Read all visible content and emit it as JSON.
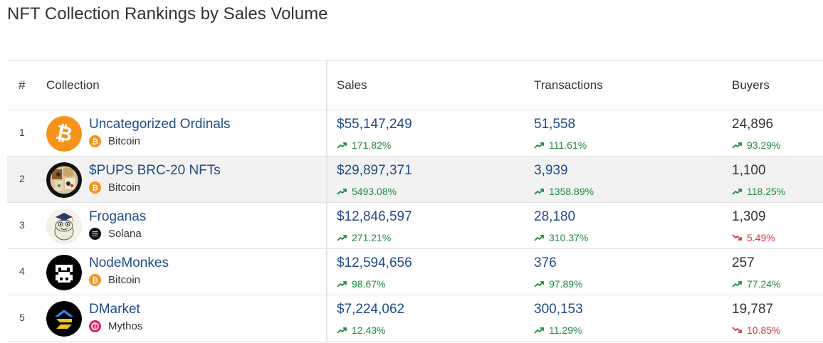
{
  "title": "NFT Collection Rankings by Sales Volume",
  "columns": {
    "rank": "#",
    "collection": "Collection",
    "sales": "Sales",
    "transactions": "Transactions",
    "buyers": "Buyers"
  },
  "colors": {
    "link": "#1f4c8a",
    "up": "#1e8a3e",
    "down": "#d8343e",
    "bitcoin": "#f7931a"
  },
  "rows": [
    {
      "rank": "1",
      "name": "Uncategorized Ordinals",
      "chain": "Bitcoin",
      "avatar_icon": "bitcoin-logo-icon",
      "sales": "$55,147,249",
      "sales_change": "171.82%",
      "transactions": "51,558",
      "transactions_change": "111.61%",
      "buyers": "24,896",
      "buyers_change": "93.29%"
    },
    {
      "rank": "2",
      "name": "$PUPS BRC-20 NFTs",
      "chain": "Bitcoin",
      "avatar_icon": "pups-collage-icon",
      "sales": "$29,897,371",
      "sales_change": "5493.08%",
      "transactions": "3,939",
      "transactions_change": "1358.89%",
      "buyers": "1,100",
      "buyers_change": "118.25%"
    },
    {
      "rank": "3",
      "name": "Froganas",
      "chain": "Solana",
      "avatar_icon": "frog-character-icon",
      "sales": "$12,846,597",
      "sales_change": "271.21%",
      "transactions": "28,180",
      "transactions_change": "310.37%",
      "buyers": "1,309",
      "buyers_change": "5.49%"
    },
    {
      "rank": "4",
      "name": "NodeMonkes",
      "chain": "Bitcoin",
      "avatar_icon": "pixel-monkey-icon",
      "sales": "$12,594,656",
      "sales_change": "98.67%",
      "transactions": "376",
      "transactions_change": "97.89%",
      "buyers": "257",
      "buyers_change": "77.24%"
    },
    {
      "rank": "5",
      "name": "DMarket",
      "chain": "Mythos",
      "avatar_icon": "dmarket-logo-icon",
      "sales": "$7,224,062",
      "sales_change": "12.43%",
      "transactions": "300,153",
      "transactions_change": "11.29%",
      "buyers": "19,787",
      "buyers_change": "10.85%"
    }
  ]
}
